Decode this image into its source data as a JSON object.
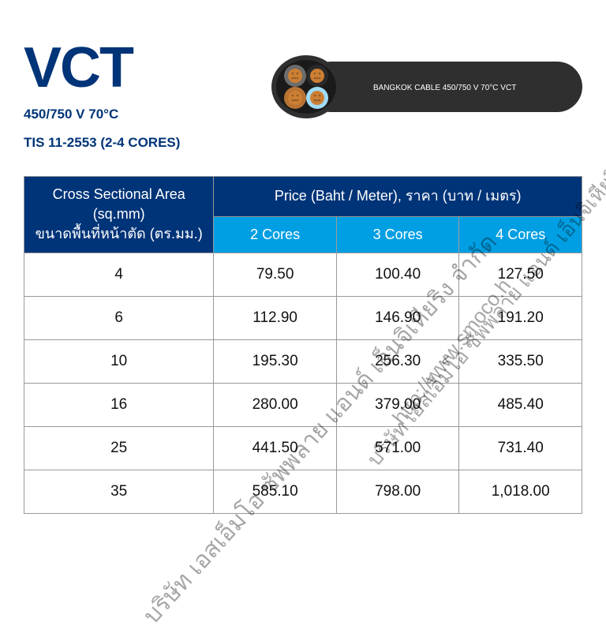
{
  "header": {
    "title": "VCT",
    "spec_line1": "450/750 V 70°C",
    "spec_line2": "TIS 11-2553 (2-4 CORES)",
    "cable_label": "BANGKOK CABLE  450/750 V  70°C  VCT",
    "title_color": "#003478"
  },
  "cable_graphic": {
    "sheath_color": "#2f2f2f",
    "core_colors": [
      "#6c6c6c",
      "#2f2f2f",
      "#9fdcf7",
      "#b87333"
    ],
    "copper_color": "#cd7f32",
    "label_color": "#ffffff"
  },
  "table": {
    "area_header_line1": "Cross Sectional Area (sq.mm)",
    "area_header_line2": "ขนาดพื้นที่หน้าตัด (ตร.มม.)",
    "price_header": "Price (Baht / Meter), ราคา (บาท / เมตร)",
    "columns": [
      "2 Cores",
      "3 Cores",
      "4 Cores"
    ],
    "header_bg": "#003478",
    "subheader_bg": "#009fe3",
    "header_text_color": "#ffffff",
    "border_color": "#999999",
    "cell_bg": "#ffffff",
    "cell_text_color": "#111111",
    "rows": [
      {
        "area": "4",
        "p2": "79.50",
        "p3": "100.40",
        "p4": "127.50"
      },
      {
        "area": "6",
        "p2": "112.90",
        "p3": "146.90",
        "p4": "191.20"
      },
      {
        "area": "10",
        "p2": "195.30",
        "p3": "256.30",
        "p4": "335.50"
      },
      {
        "area": "16",
        "p2": "280.00",
        "p3": "379.00",
        "p4": "485.40"
      },
      {
        "area": "25",
        "p2": "441.50",
        "p3": "571.00",
        "p4": "731.40"
      },
      {
        "area": "35",
        "p2": "585.10",
        "p3": "798.00",
        "p4": "1,018.00"
      }
    ]
  },
  "watermarks": {
    "company": "บริษัท เอสเอ็มโอ ซัพพลาย แอนด์ เอ็นจิเหียริง จำกัด",
    "url": "http://www.smoco.h",
    "color": "rgba(0,0,0,0.35)"
  }
}
